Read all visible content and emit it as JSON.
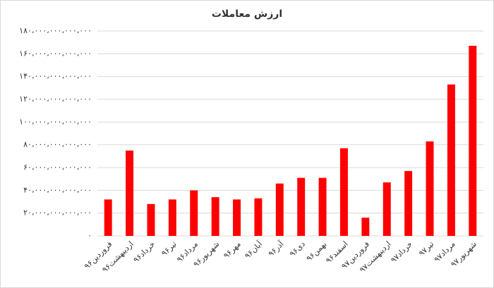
{
  "chart_data": {
    "type": "bar",
    "title": "ارزش معاملات",
    "categories": [
      "فروردین۹۶",
      "اردیبهشت۹۶",
      "خرداد۹۶",
      "تیر۹۶",
      "مرداد۹۶",
      "شهریور۹۶",
      "مهر۹۶",
      "آبان۹۶",
      "آذر۹۶",
      "دی۹۶",
      "بهمن۹۶",
      "اسفند۹۶",
      "فروردین۹۷",
      "اردیبهشت۹۷",
      "خرداد۹۷",
      "تیر۹۷",
      "مرداد۹۷",
      "شهریور۹۷"
    ],
    "values": [
      32000000000000,
      75000000000000,
      28000000000000,
      32000000000000,
      40000000000000,
      34000000000000,
      32000000000000,
      33000000000000,
      46000000000000,
      51000000000000,
      51000000000000,
      77000000000000,
      16000000000000,
      47000000000000,
      57000000000000,
      83000000000000,
      133000000000000,
      167000000000000
    ],
    "color": "#ff0000",
    "ylim": [
      0,
      180000000000000
    ],
    "yticks": [
      {
        "value": 0,
        "label": "۰"
      },
      {
        "value": 20000000000000,
        "label": "۲۰،۰۰۰،۰۰۰،۰۰۰،۰۰۰"
      },
      {
        "value": 40000000000000,
        "label": "۴۰،۰۰۰،۰۰۰،۰۰۰،۰۰۰"
      },
      {
        "value": 60000000000000,
        "label": "۶۰،۰۰۰،۰۰۰،۰۰۰،۰۰۰"
      },
      {
        "value": 80000000000000,
        "label": "۸۰،۰۰۰،۰۰۰،۰۰۰،۰۰۰"
      },
      {
        "value": 100000000000000,
        "label": "۱۰۰،۰۰۰،۰۰۰،۰۰۰،۰۰۰"
      },
      {
        "value": 120000000000000,
        "label": "۱۲۰،۰۰۰،۰۰۰،۰۰۰،۰۰۰"
      },
      {
        "value": 140000000000000,
        "label": "۱۴۰،۰۰۰،۰۰۰،۰۰۰،۰۰۰"
      },
      {
        "value": 160000000000000,
        "label": "۱۶۰،۰۰۰،۰۰۰،۰۰۰،۰۰۰"
      },
      {
        "value": 180000000000000,
        "label": "۱۸۰،۰۰۰،۰۰۰،۰۰۰،۰۰۰"
      }
    ],
    "grid": true
  }
}
